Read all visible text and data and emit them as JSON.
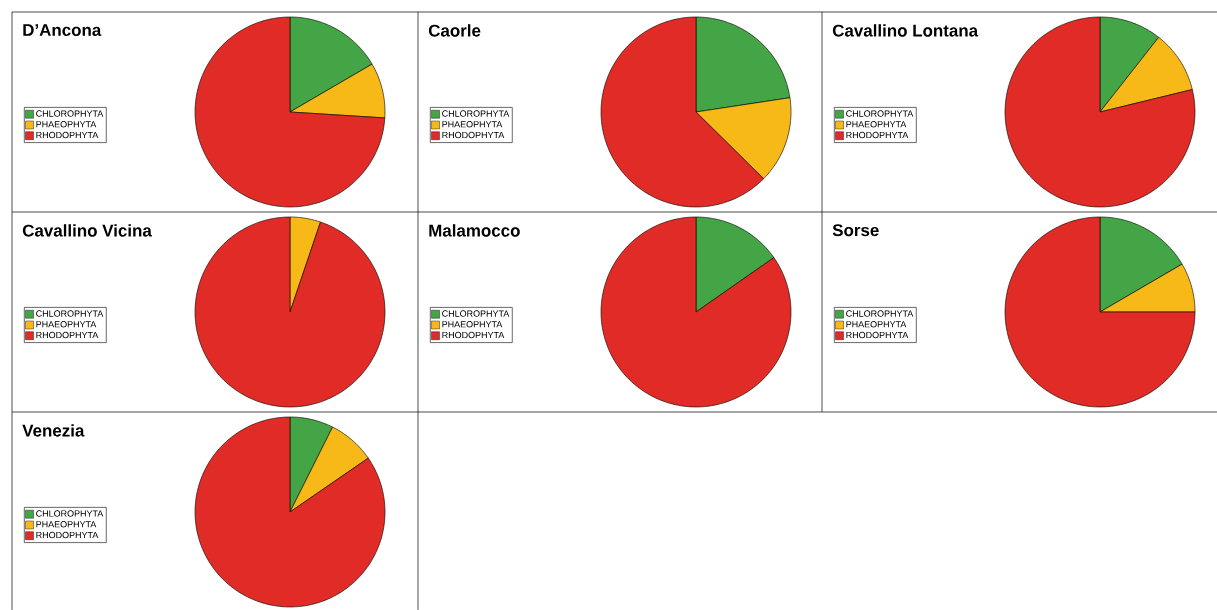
{
  "chart_data": [
    {
      "type": "pie",
      "title": "D’Ancona",
      "categories": [
        "CHLOROPHYTA",
        "PHAEOPHYTA",
        "RHODOPHYTA"
      ],
      "values": [
        16.6,
        9.4,
        74.0
      ],
      "colors": [
        "#43a546",
        "#f7b918",
        "#e12b26"
      ],
      "legend": "left"
    },
    {
      "type": "pie",
      "title": "Caorle",
      "categories": [
        "CHLOROPHYTA",
        "PHAEOPHYTA",
        "RHODOPHYTA"
      ],
      "values": [
        22.6,
        14.8,
        62.6
      ],
      "colors": [
        "#43a546",
        "#f7b918",
        "#e12b26"
      ],
      "legend": "left"
    },
    {
      "type": "pie",
      "title": "Cavallino Lontana",
      "categories": [
        "CHLOROPHYTA",
        "PHAEOPHYTA",
        "RHODOPHYTA"
      ],
      "values": [
        10.6,
        10.6,
        78.8
      ],
      "colors": [
        "#43a546",
        "#f7b918",
        "#e12b26"
      ],
      "legend": "left"
    },
    {
      "type": "pie",
      "title": "Cavallino Vicina",
      "categories": [
        "CHLOROPHYTA",
        "PHAEOPHYTA",
        "RHODOPHYTA"
      ],
      "values": [
        0,
        5.2,
        94.8
      ],
      "colors": [
        "#43a546",
        "#f7b918",
        "#e12b26"
      ],
      "legend": "left"
    },
    {
      "type": "pie",
      "title": "Malamocco",
      "categories": [
        "CHLOROPHYTA",
        "PHAEOPHYTA",
        "RHODOPHYTA"
      ],
      "values": [
        15.3,
        0,
        84.7
      ],
      "colors": [
        "#43a546",
        "#f7b918",
        "#e12b26"
      ],
      "legend": "left"
    },
    {
      "type": "pie",
      "title": "Sorse",
      "categories": [
        "CHLOROPHYTA",
        "PHAEOPHYTA",
        "RHODOPHYTA"
      ],
      "values": [
        16.6,
        8.4,
        75.0
      ],
      "colors": [
        "#43a546",
        "#f7b918",
        "#e12b26"
      ],
      "legend": "left"
    },
    {
      "type": "pie",
      "title": "Venezia",
      "categories": [
        "CHLOROPHYTA",
        "PHAEOPHYTA",
        "RHODOPHYTA"
      ],
      "values": [
        7.4,
        8.0,
        84.6
      ],
      "colors": [
        "#43a546",
        "#f7b918",
        "#e12b26"
      ],
      "legend": "left"
    }
  ]
}
